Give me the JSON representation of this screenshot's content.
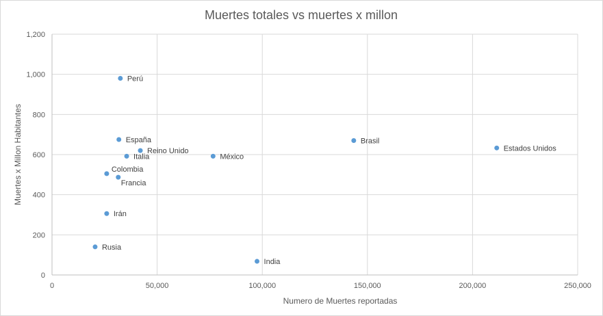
{
  "chart_data": {
    "type": "scatter",
    "title": "Muertes totales vs muertes x millon",
    "xlabel": "Numero de Muertes reportadas",
    "ylabel": "Muertes x Millon Habitantes",
    "xlim": [
      0,
      250000
    ],
    "ylim": [
      0,
      1200
    ],
    "x_ticks": [
      0,
      50000,
      100000,
      150000,
      200000,
      250000
    ],
    "x_tick_labels": [
      "0",
      "50,000",
      "100,000",
      "150,000",
      "200,000",
      "250,000"
    ],
    "y_ticks": [
      0,
      200,
      400,
      600,
      800,
      1000,
      1200
    ],
    "y_tick_labels": [
      "0",
      "200",
      "400",
      "600",
      "800",
      "1,000",
      "1,200"
    ],
    "grid": true,
    "marker_color": "#5b9bd5",
    "points": [
      {
        "label": "Perú",
        "x": 32500,
        "y": 980
      },
      {
        "label": "España",
        "x": 31800,
        "y": 675
      },
      {
        "label": "Reino Unido",
        "x": 42000,
        "y": 620
      },
      {
        "label": "Italia",
        "x": 35500,
        "y": 592
      },
      {
        "label": "México",
        "x": 76600,
        "y": 592
      },
      {
        "label": "Colombia",
        "x": 26000,
        "y": 505
      },
      {
        "label": "Francia",
        "x": 31500,
        "y": 487
      },
      {
        "label": "Irán",
        "x": 26000,
        "y": 306
      },
      {
        "label": "Rusia",
        "x": 20500,
        "y": 140
      },
      {
        "label": "India",
        "x": 97500,
        "y": 68
      },
      {
        "label": "Brasil",
        "x": 143500,
        "y": 670
      },
      {
        "label": "Estados Unidos",
        "x": 211500,
        "y": 633
      }
    ]
  }
}
